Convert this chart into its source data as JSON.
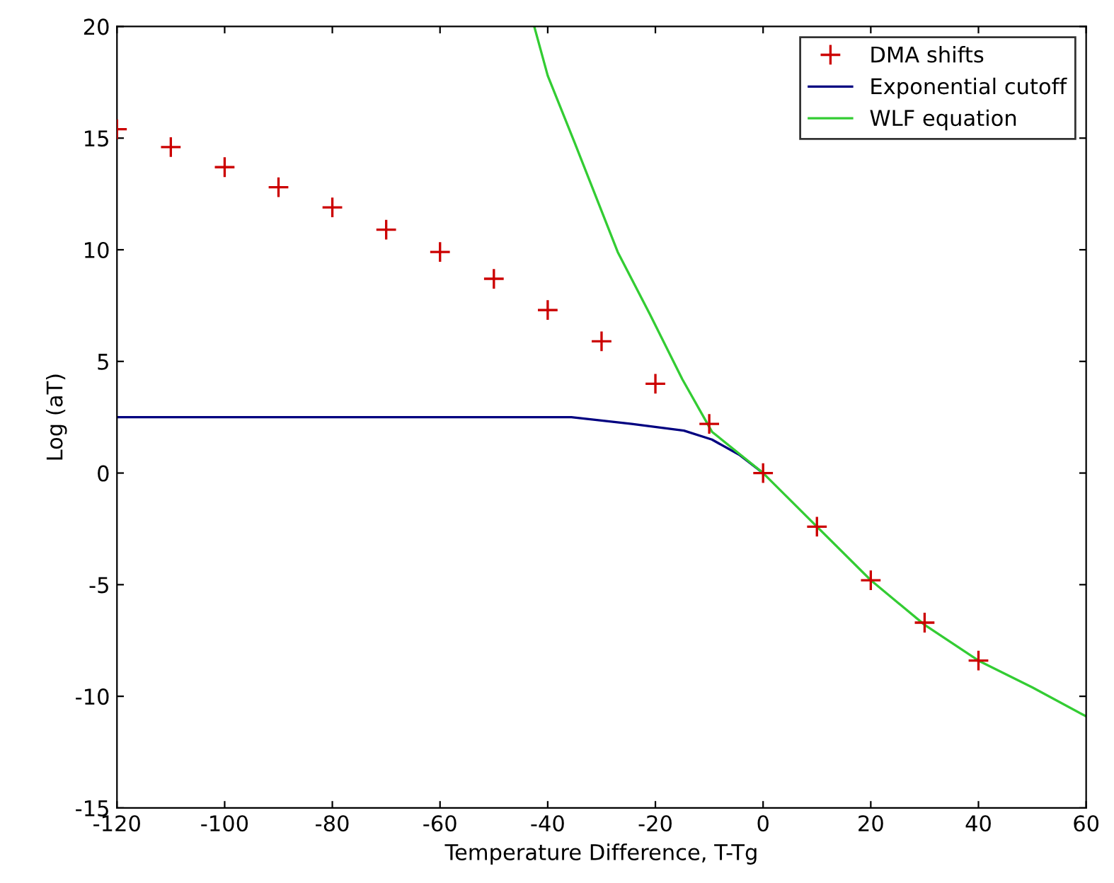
{
  "chart_data": {
    "type": "scatter",
    "xlabel": "Temperature Difference, T-Tg",
    "ylabel": "Log (aT)",
    "xlim": [
      -120,
      60
    ],
    "xticks": [
      -120,
      -100,
      -80,
      -60,
      -40,
      -20,
      0,
      20,
      40,
      60
    ],
    "ylim": [
      -15,
      20
    ],
    "yticks": [
      -15,
      -10,
      -5,
      0,
      5,
      10,
      15,
      20
    ],
    "grid": false,
    "legend": "top right",
    "series": [
      {
        "name": "DMA shifts",
        "marker": "cross",
        "color": "#cc0000",
        "x": [
          -120,
          -110,
          -100,
          -90,
          -80,
          -70,
          -60,
          -50,
          -40,
          -30,
          -20,
          -10,
          0,
          10,
          20,
          30,
          40
        ],
        "values": [
          15.4,
          14.6,
          13.7,
          12.8,
          11.9,
          10.9,
          9.9,
          8.7,
          7.3,
          5.9,
          4.0,
          2.2,
          0,
          -2.4,
          -4.8,
          -6.7,
          -8.4
        ]
      },
      {
        "name": "Exponential cutoff",
        "type": "line",
        "color": "#000080",
        "x": [
          -120,
          -35.6,
          -24.4,
          -14.7,
          -9.5,
          -4.3,
          0
        ],
        "values": [
          2.5,
          2.5,
          2.2,
          1.9,
          1.5,
          0.8,
          0
        ]
      },
      {
        "name": "WLF equation",
        "type": "line",
        "color": "#33cc33",
        "x": [
          -42.5,
          -40,
          -35,
          -27,
          -21,
          -15,
          -9.5,
          0,
          10,
          20,
          30,
          40,
          50,
          60
        ],
        "values": [
          20,
          17.8,
          14.8,
          9.9,
          7.1,
          4.2,
          1.85,
          0,
          -2.4,
          -4.8,
          -6.8,
          -8.4,
          -9.6,
          -10.9
        ]
      }
    ]
  }
}
